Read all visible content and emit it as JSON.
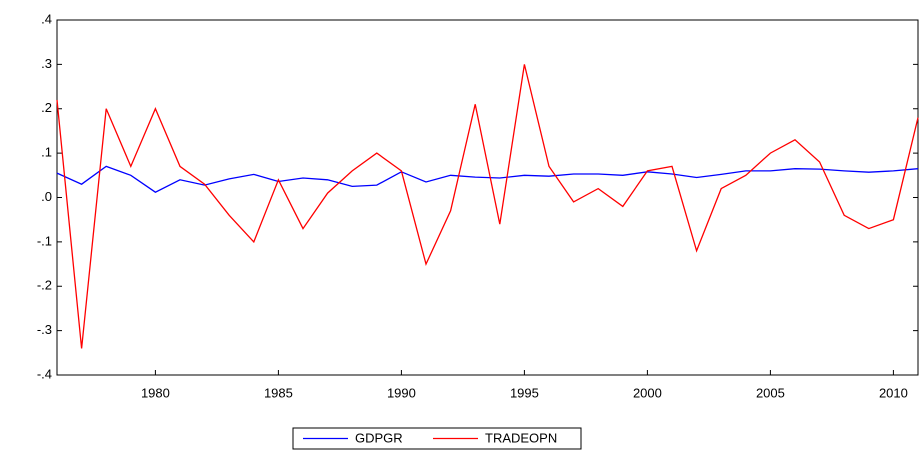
{
  "chart_data": {
    "type": "line",
    "x": [
      1976,
      1977,
      1978,
      1979,
      1980,
      1981,
      1982,
      1983,
      1984,
      1985,
      1986,
      1987,
      1988,
      1989,
      1990,
      1991,
      1992,
      1993,
      1994,
      1995,
      1996,
      1997,
      1998,
      1999,
      2000,
      2001,
      2002,
      2003,
      2004,
      2005,
      2006,
      2007,
      2008,
      2009,
      2010,
      2011
    ],
    "series": [
      {
        "name": "GDPGR",
        "color": "#0000ff",
        "values": [
          0.055,
          0.03,
          0.07,
          0.05,
          0.012,
          0.04,
          0.028,
          0.042,
          0.052,
          0.036,
          0.044,
          0.04,
          0.025,
          0.028,
          0.058,
          0.035,
          0.05,
          0.046,
          0.044,
          0.05,
          0.048,
          0.053,
          0.053,
          0.05,
          0.058,
          0.053,
          0.045,
          0.052,
          0.06,
          0.06,
          0.065,
          0.064,
          0.06,
          0.057,
          0.06,
          0.065
        ]
      },
      {
        "name": "TRADEOPN",
        "color": "#ff0000",
        "values": [
          0.22,
          -0.34,
          0.2,
          0.07,
          0.2,
          0.07,
          0.03,
          -0.04,
          -0.1,
          0.04,
          -0.07,
          0.01,
          0.06,
          0.1,
          0.06,
          -0.15,
          -0.03,
          0.21,
          -0.06,
          0.3,
          0.07,
          -0.01,
          0.02,
          -0.02,
          0.06,
          0.07,
          -0.12,
          0.02,
          0.05,
          0.1,
          0.13,
          0.08,
          -0.04,
          -0.07,
          -0.05,
          0.18
        ]
      }
    ],
    "xlim": [
      1976,
      2011
    ],
    "xticks": [
      1980,
      1985,
      1990,
      1995,
      2000,
      2005,
      2010
    ],
    "ylim": [
      -0.4,
      0.4
    ],
    "yticks": [
      {
        "value": -0.4,
        "label": "-.4"
      },
      {
        "value": -0.3,
        "label": "-.3"
      },
      {
        "value": -0.2,
        "label": "-.2"
      },
      {
        "value": -0.1,
        "label": "-.1"
      },
      {
        "value": 0,
        "label": ".0"
      },
      {
        "value": 0.1,
        "label": ".1"
      },
      {
        "value": 0.2,
        "label": ".2"
      },
      {
        "value": 0.3,
        "label": ".3"
      },
      {
        "value": 0.4,
        "label": ".4"
      }
    ],
    "legend": "bottom"
  }
}
